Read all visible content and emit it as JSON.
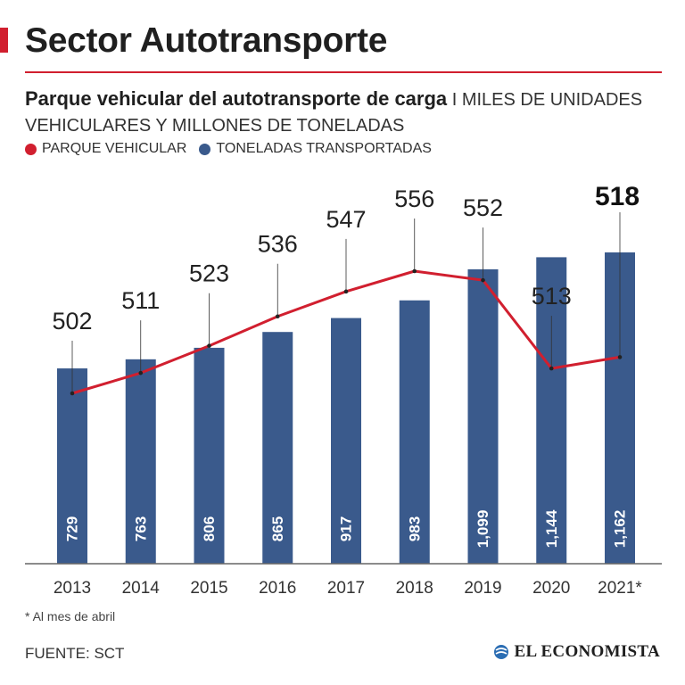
{
  "header": {
    "section_title": "Sector Autotransporte",
    "subtitle_bold": "Parque vehicular del autotransporte de carga",
    "subtitle_rest": " I MILES DE UNIDADES VEHICULARES Y MILLONES DE TONELADAS"
  },
  "legend": [
    {
      "label": "PARQUE VEHICULAR",
      "color": "#d11f2f"
    },
    {
      "label": "TONELADAS TRANSPORTADAS",
      "color": "#3a5a8c"
    }
  ],
  "chart_data": {
    "type": "bar",
    "title": "Parque vehicular del autotransporte de carga",
    "categories": [
      "2013",
      "2014",
      "2015",
      "2016",
      "2017",
      "2018",
      "2019",
      "2020",
      "2021*"
    ],
    "series": [
      {
        "name": "TONELADAS TRANSPORTADAS",
        "type": "bar",
        "color": "#3a5a8c",
        "values": [
          729,
          763,
          806,
          865,
          917,
          983,
          1099,
          1144,
          1162
        ],
        "labels": [
          "729",
          "763",
          "806",
          "865",
          "917",
          "983",
          "1,099",
          "1,144",
          "1,162"
        ]
      },
      {
        "name": "PARQUE VEHICULAR",
        "type": "line",
        "color": "#d11f2f",
        "values": [
          502,
          511,
          523,
          536,
          547,
          556,
          552,
          513,
          518
        ],
        "labels": [
          "502",
          "511",
          "523",
          "536",
          "547",
          "556",
          "552",
          "513",
          "518"
        ]
      }
    ],
    "highlight_index": 8,
    "xlabel": "",
    "ylabel": "",
    "grid": false
  },
  "footnote": "* Al mes de abril",
  "source": "FUENTE: SCT",
  "brand": "EL ECONOMISTA"
}
